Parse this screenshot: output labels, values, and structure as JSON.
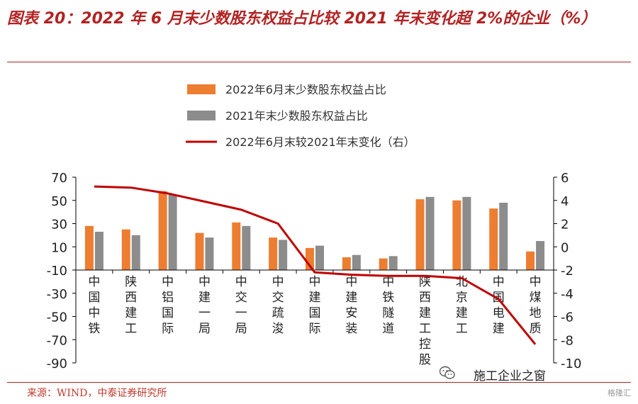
{
  "title": "图表 20：2022 年 6 月末少数股东权益占比较 2021 年末变化超 2%的企业（%）",
  "source": "来源：WIND，中泰证券研究所",
  "watermark": "施工企业之窗",
  "corner_mark": "格隆汇",
  "colors": {
    "title": "#b22222",
    "bar_2022": "#ed7d31",
    "bar_2021": "#8c8c8c",
    "line": "#c00000",
    "axis": "#000000"
  },
  "chart_data": {
    "type": "bar",
    "title": "",
    "xlabel": "",
    "ylabel": "",
    "legend_position": "top",
    "grid": false,
    "categories": [
      "中国中铁",
      "陕西建工",
      "中铝国际",
      "中建一局",
      "中交一局",
      "中交疏浚",
      "中建国际",
      "中建安装",
      "中铁隧道",
      "陕西建工控股",
      "北京建工",
      "中国电建",
      "中煤地质"
    ],
    "ylim_left": [
      -90,
      70
    ],
    "yticks_left": [
      70,
      50,
      30,
      10,
      -10,
      -30,
      -50,
      -70,
      -90
    ],
    "ylim_right": [
      -10,
      6
    ],
    "yticks_right": [
      6,
      4,
      2,
      0,
      -2,
      -4,
      -6,
      -8,
      -10
    ],
    "series": [
      {
        "name": "2022年6月末少数股东权益占比",
        "kind": "bar",
        "axis": "left",
        "values": [
          28,
          25,
          58,
          22,
          31,
          18,
          9,
          1,
          0,
          51,
          50,
          43,
          6
        ]
      },
      {
        "name": "2021年末少数股东权益占比",
        "kind": "bar",
        "axis": "left",
        "values": [
          23,
          20,
          55,
          18,
          28,
          16,
          11,
          3,
          2,
          53,
          53,
          48,
          15
        ]
      },
      {
        "name": "2022年6月末较2021年末变化（右）",
        "kind": "line",
        "axis": "right",
        "values": [
          5.2,
          5.1,
          4.6,
          3.9,
          3.2,
          2.0,
          -2.2,
          -2.4,
          -2.5,
          -2.5,
          -2.7,
          -4.5,
          -8.4
        ]
      }
    ]
  }
}
